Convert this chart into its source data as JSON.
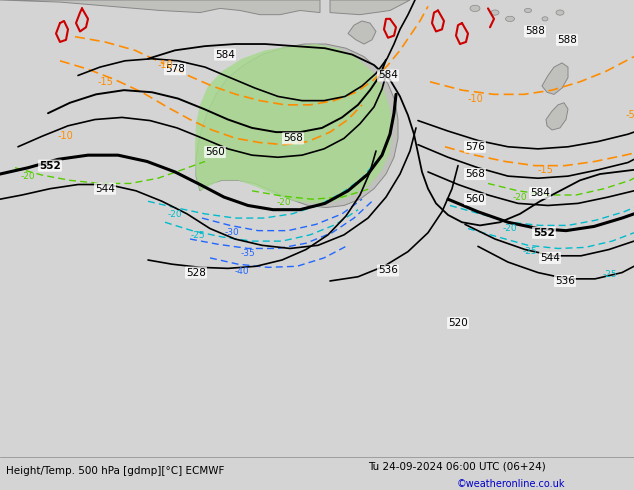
{
  "title_left": "Height/Temp. 500 hPa [gdmp][°C] ECMWF",
  "title_right": "Tu 24-09-2024 06:00 UTC (06+24)",
  "credit": "©weatheronline.co.uk",
  "background_color": "#d4d4d4",
  "ocean_color": "#c8c8d0",
  "land_color": "#c0c0bc",
  "green_fill_color": "#a8d890",
  "credit_color": "#0000cc",
  "fig_width": 6.34,
  "fig_height": 4.9,
  "dpi": 100
}
